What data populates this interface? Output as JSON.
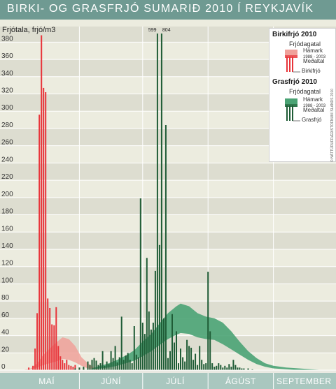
{
  "title": "BIRKI- OG GRASFRJÓ SUMARIÐ 2010 Í REYKJAVÍK",
  "copyright": "© NÁTTÚRUFRÆÐISTOFNUN ÍSLANDS 2010",
  "colors": {
    "birch": "#e8343a",
    "birch_band": "#f0a19a",
    "grass": "#1f5c36",
    "grass_band": "#4aa374",
    "title_bar": "#6f9a92"
  },
  "legend": {
    "birch_title": "Birkifrjó 2010",
    "birch_sub": "Frjódagatal",
    "birch_max": "Hámark",
    "birch_years": "1988 - 2003",
    "birch_mean": "Meðaltal",
    "birch_series": "Birkifrjó",
    "grass_title": "Grasfrjó 2010",
    "grass_sub": "Frjódagatal",
    "grass_max": "Hámark",
    "grass_years": "1988 - 2003",
    "grass_mean": "Meðaltal",
    "grass_series": "Grasfrjó"
  },
  "chart_data": {
    "type": "bar",
    "title": "BIRKI- OG GRASFRJÓ SUMARIÐ 2010 Í REYKJAVÍK",
    "ylabel": "Frjótala, frjó/m3",
    "ylim": [
      0,
      390
    ],
    "yticks": [
      0,
      20,
      40,
      60,
      80,
      100,
      120,
      140,
      160,
      180,
      200,
      220,
      240,
      260,
      280,
      300,
      320,
      340,
      360,
      380
    ],
    "months": [
      "MAÍ",
      "JÚNÍ",
      "JÚLÍ",
      "ÁGÚST",
      "SEPTEMBER"
    ],
    "xlim": [
      1,
      153
    ],
    "month_starts": [
      1,
      32,
      62,
      93,
      124
    ],
    "grid": true,
    "legend_position": "top-right",
    "annotations": [
      {
        "text": "599",
        "day": 69
      },
      {
        "text": "804",
        "day": 71
      }
    ],
    "series": [
      {
        "name": "Birkifrjó",
        "type": "bar",
        "data": [
          [
            8,
            3
          ],
          [
            10,
            5
          ],
          [
            11,
            25
          ],
          [
            12,
            66
          ],
          [
            13,
            296
          ],
          [
            14,
            388
          ],
          [
            15,
            327
          ],
          [
            16,
            322
          ],
          [
            17,
            83
          ],
          [
            18,
            72
          ],
          [
            19,
            53
          ],
          [
            20,
            52
          ],
          [
            21,
            73
          ],
          [
            22,
            28
          ],
          [
            23,
            16
          ],
          [
            24,
            12
          ],
          [
            25,
            8
          ],
          [
            26,
            12
          ],
          [
            27,
            6
          ],
          [
            28,
            5
          ],
          [
            29,
            4
          ],
          [
            30,
            6
          ],
          [
            32,
            3
          ],
          [
            34,
            2
          ]
        ]
      },
      {
        "name": "Grasfrjó",
        "type": "bar",
        "data": [
          [
            30,
            2
          ],
          [
            32,
            3
          ],
          [
            34,
            4
          ],
          [
            36,
            10
          ],
          [
            37,
            6
          ],
          [
            38,
            12
          ],
          [
            39,
            14
          ],
          [
            40,
            11
          ],
          [
            41,
            6
          ],
          [
            42,
            8
          ],
          [
            43,
            22
          ],
          [
            44,
            5
          ],
          [
            45,
            10
          ],
          [
            46,
            7
          ],
          [
            47,
            22
          ],
          [
            48,
            14
          ],
          [
            49,
            28
          ],
          [
            50,
            9
          ],
          [
            51,
            15
          ],
          [
            52,
            62
          ],
          [
            53,
            12
          ],
          [
            54,
            17
          ],
          [
            55,
            20
          ],
          [
            56,
            12
          ],
          [
            57,
            8
          ],
          [
            58,
            51
          ],
          [
            59,
            18
          ],
          [
            60,
            15
          ],
          [
            61,
            199
          ],
          [
            62,
            55
          ],
          [
            63,
            42
          ],
          [
            64,
            130
          ],
          [
            65,
            68
          ],
          [
            66,
            47
          ],
          [
            67,
            55
          ],
          [
            68,
            115
          ],
          [
            69,
            390
          ],
          [
            70,
            145
          ],
          [
            71,
            390
          ],
          [
            72,
            60
          ],
          [
            73,
            284
          ],
          [
            74,
            14
          ],
          [
            75,
            22
          ],
          [
            76,
            65
          ],
          [
            77,
            32
          ],
          [
            78,
            45
          ],
          [
            79,
            8
          ],
          [
            80,
            25
          ],
          [
            81,
            15
          ],
          [
            82,
            10
          ],
          [
            83,
            35
          ],
          [
            84,
            28
          ],
          [
            85,
            26
          ],
          [
            86,
            12
          ],
          [
            87,
            19
          ],
          [
            88,
            6
          ],
          [
            89,
            28
          ],
          [
            90,
            12
          ],
          [
            91,
            7
          ],
          [
            92,
            8
          ],
          [
            93,
            114
          ],
          [
            94,
            45
          ],
          [
            95,
            8
          ],
          [
            96,
            4
          ],
          [
            97,
            5
          ],
          [
            98,
            8
          ],
          [
            99,
            6
          ],
          [
            100,
            3
          ],
          [
            101,
            5
          ],
          [
            102,
            3
          ],
          [
            103,
            7
          ],
          [
            104,
            4
          ],
          [
            105,
            12
          ],
          [
            106,
            6
          ],
          [
            107,
            3
          ],
          [
            108,
            3
          ],
          [
            109,
            2
          ],
          [
            110,
            2
          ],
          [
            112,
            2
          ],
          [
            114,
            1
          ]
        ]
      },
      {
        "name": "Birkifrjó Frjódagatal",
        "type": "band",
        "x": [
          5,
          9,
          12,
          15,
          18,
          21,
          24,
          27,
          30,
          33,
          36,
          39,
          42
        ],
        "upper": [
          0,
          2,
          8,
          18,
          25,
          32,
          38,
          36,
          28,
          15,
          8,
          3,
          0
        ],
        "lower": [
          0,
          1,
          3,
          6,
          8,
          10,
          13,
          12,
          9,
          5,
          2,
          1,
          0
        ]
      },
      {
        "name": "Grasfrjó Frjódagatal",
        "type": "band",
        "x": [
          38,
          42,
          46,
          50,
          54,
          58,
          62,
          66,
          70,
          74,
          78,
          80,
          84,
          88,
          92,
          96,
          100,
          104,
          108,
          112,
          116,
          120,
          124,
          130,
          136,
          142,
          148
        ],
        "upper": [
          2,
          5,
          8,
          12,
          17,
          23,
          33,
          42,
          54,
          66,
          74,
          77,
          74,
          66,
          62,
          60,
          55,
          45,
          33,
          22,
          14,
          8,
          5,
          3,
          2,
          1,
          0
        ],
        "lower": [
          1,
          2,
          3,
          5,
          8,
          11,
          16,
          22,
          29,
          36,
          41,
          43,
          42,
          38,
          36,
          35,
          30,
          24,
          18,
          12,
          7,
          4,
          2,
          1,
          0,
          0,
          0
        ]
      }
    ]
  }
}
